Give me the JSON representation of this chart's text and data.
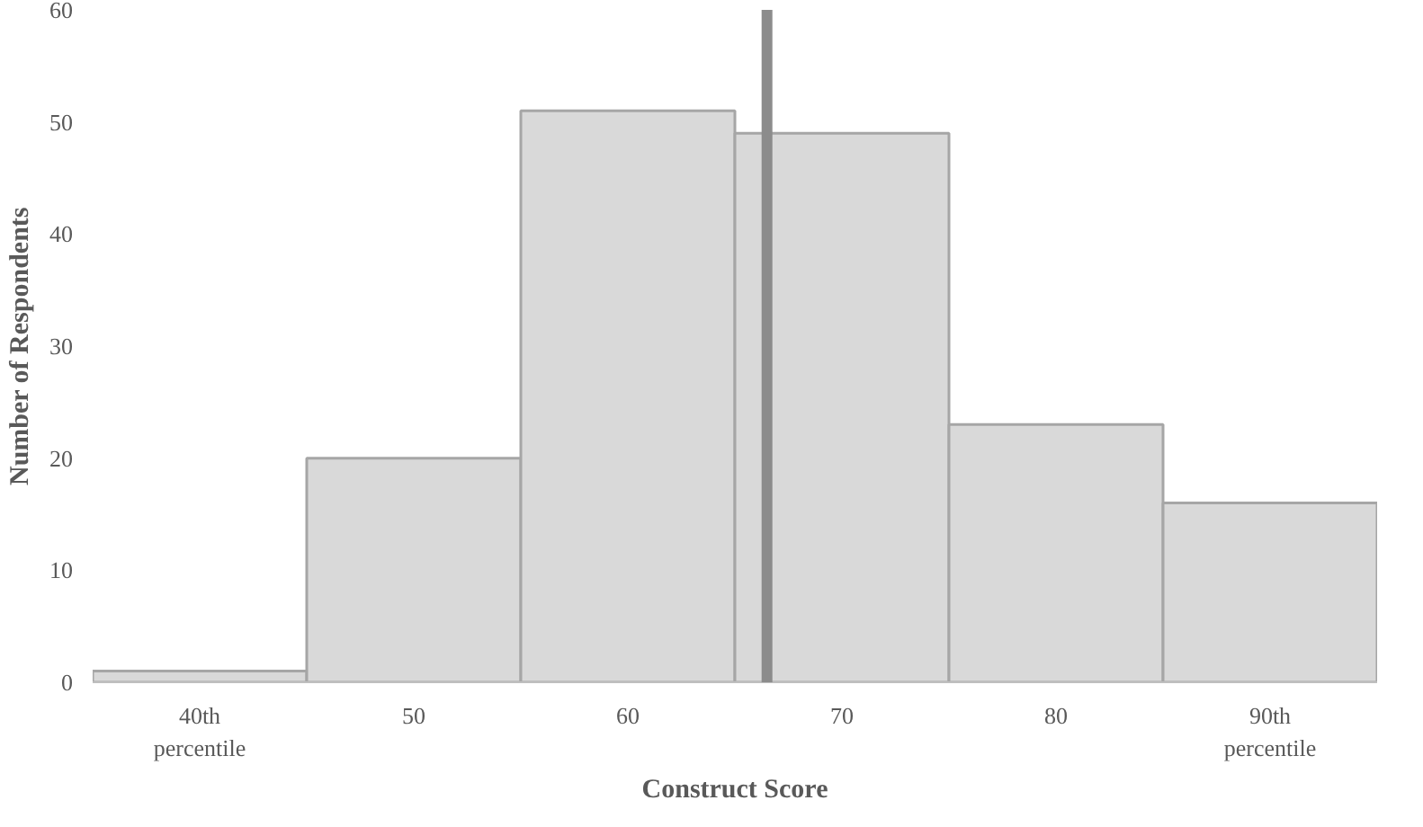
{
  "chart_data": {
    "type": "histogram",
    "xlabel": "Construct Score",
    "ylabel": "Number of Respondents",
    "bins": [
      35,
      45,
      55,
      65,
      75,
      85,
      95
    ],
    "values": [
      1,
      20,
      51,
      49,
      23,
      16
    ],
    "color": "#d9d9d9",
    "xlim": [
      35,
      95
    ],
    "xticks": [
      {
        "value": 40,
        "label": "40th\npercentile"
      },
      50,
      60,
      70,
      80,
      {
        "value": 90,
        "label": "90th\npercentile"
      }
    ],
    "ylim": [
      0,
      60
    ],
    "yticks": [
      0,
      10,
      20,
      30,
      40,
      50,
      60
    ],
    "ref_lines": [
      {
        "axis": "x",
        "value": 66.5,
        "label": null,
        "color": "#8c8c8c"
      }
    ],
    "grid": false
  }
}
